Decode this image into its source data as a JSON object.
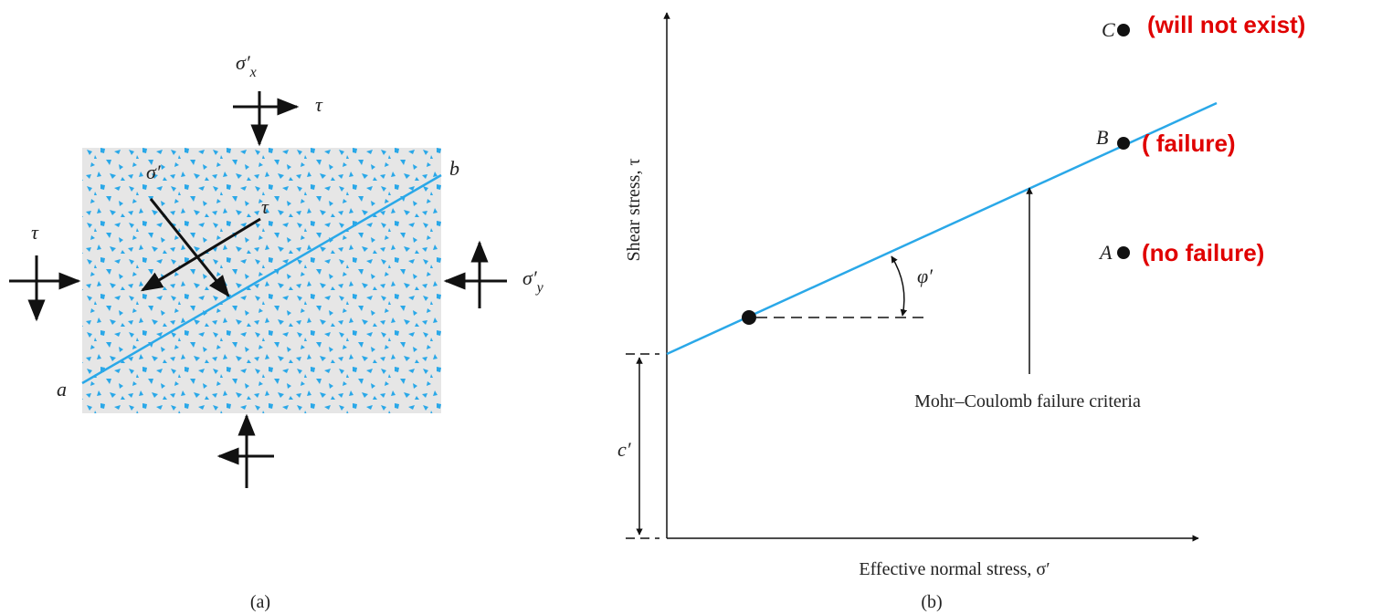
{
  "panel_a": {
    "sigma_x": {
      "symbol": "σ′",
      "subscript": "x"
    },
    "tau_top": "τ",
    "tau_left": "τ",
    "sigma_y": {
      "symbol": "σ′",
      "subscript": "y"
    },
    "sigma_plane": "σ′",
    "tau_plane": "τ",
    "point_b": "b",
    "point_a": "a",
    "caption": "(a)"
  },
  "panel_b": {
    "y_axis_label": "Shear stress, τ",
    "x_axis_label": "Effective normal stress, σ′",
    "friction_angle": "φ′",
    "cohesion": "c′",
    "envelope_label": "Mohr–Coulomb failure criteria",
    "points": [
      {
        "label": "C",
        "note": "(will not exist)"
      },
      {
        "label": "B",
        "note": "( failure)"
      },
      {
        "label": "A",
        "note": "(no failure)"
      }
    ],
    "caption": "(b)"
  }
}
